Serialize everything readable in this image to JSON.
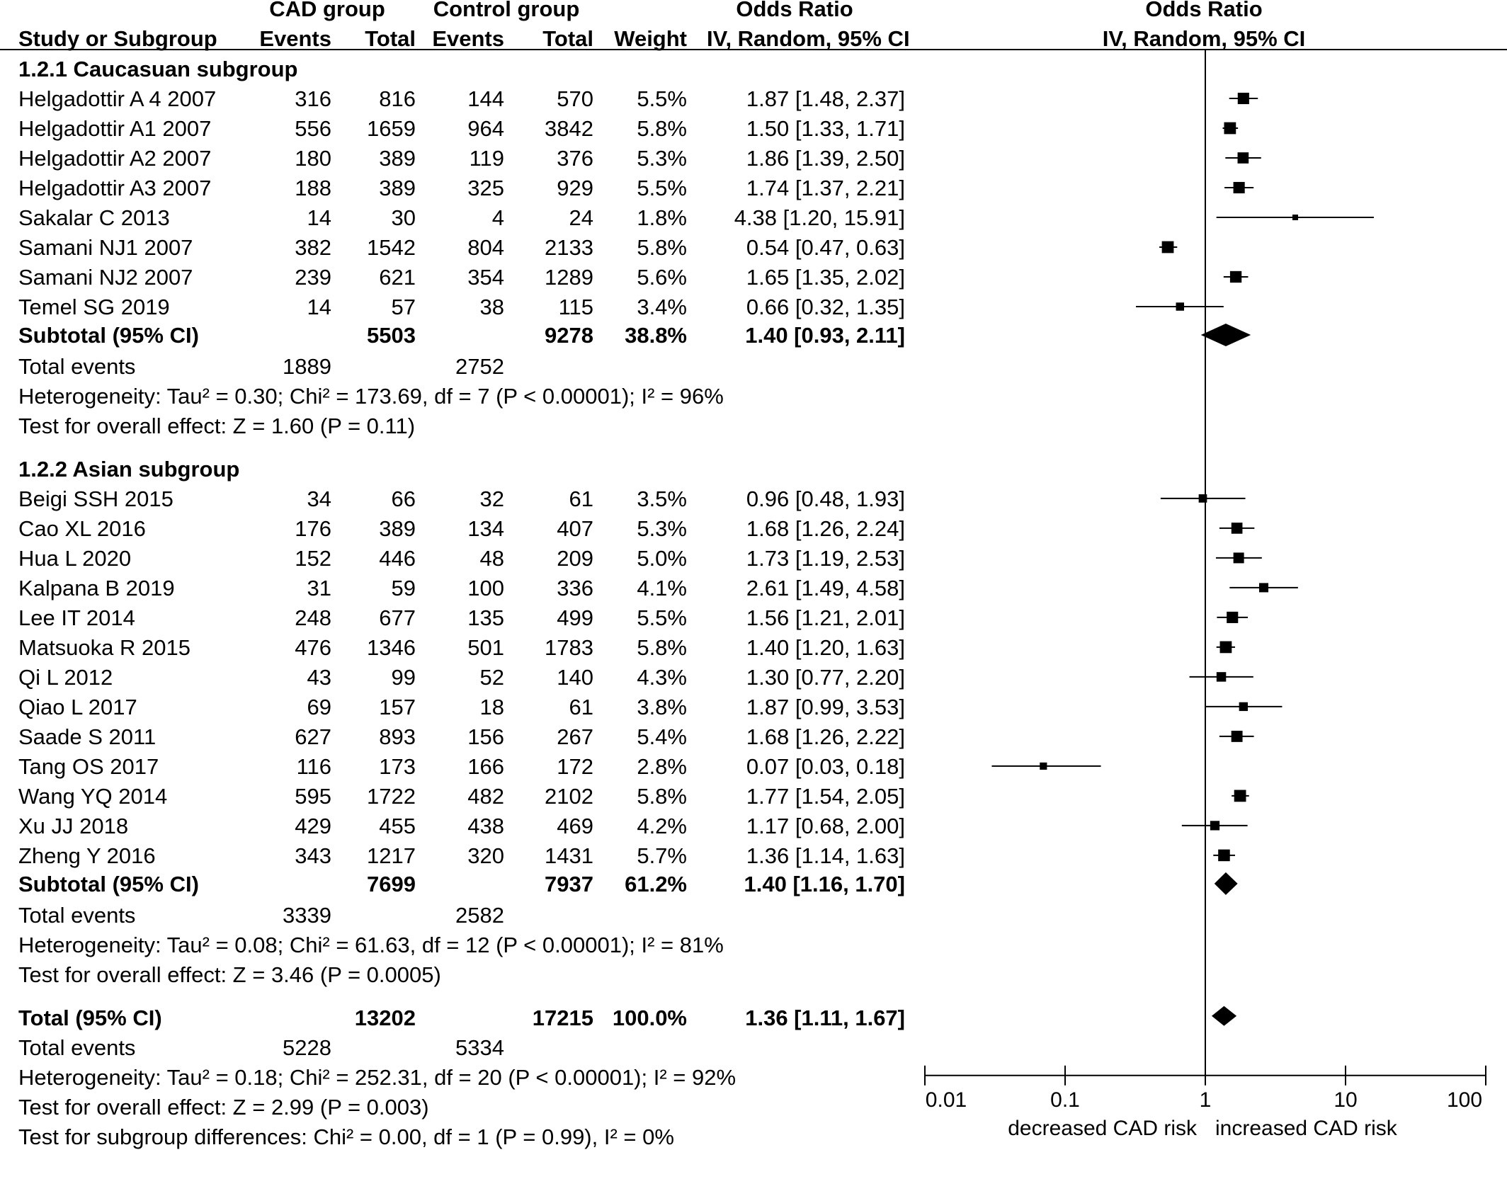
{
  "header": {
    "cad_group": "CAD group",
    "control_group": "Control group",
    "odds_ratio": "Odds Ratio",
    "odds_ratio_plot": "Odds Ratio",
    "study_or_subgroup": "Study or Subgroup",
    "events": "Events",
    "total": "Total",
    "events2": "Events",
    "total2": "Total",
    "weight": "Weight",
    "method": "IV, Random, 95% CI",
    "method_plot": "IV, Random, 95% CI"
  },
  "chart_data": {
    "type": "forest",
    "x_scale": "log",
    "xlim": [
      0.01,
      100
    ],
    "x_ticks": [
      "0.01",
      "0.1",
      "1",
      "10",
      "100"
    ],
    "null_line": 1,
    "xlabel_left": "decreased CAD risk",
    "xlabel_right": "increased CAD risk",
    "subgroups": [
      {
        "title": "1.2.1 Caucasuan subgroup",
        "studies": [
          {
            "name": "Helgadottir A 4 2007",
            "e1": "316",
            "n1": "816",
            "e2": "144",
            "n2": "570",
            "weight": "5.5%",
            "ci_text": "1.87 [1.48, 2.37]",
            "or": 1.87,
            "lo": 1.48,
            "hi": 2.37
          },
          {
            "name": "Helgadottir A1 2007",
            "e1": "556",
            "n1": "1659",
            "e2": "964",
            "n2": "3842",
            "weight": "5.8%",
            "ci_text": "1.50 [1.33, 1.71]",
            "or": 1.5,
            "lo": 1.33,
            "hi": 1.71
          },
          {
            "name": "Helgadottir A2 2007",
            "e1": "180",
            "n1": "389",
            "e2": "119",
            "n2": "376",
            "weight": "5.3%",
            "ci_text": "1.86 [1.39, 2.50]",
            "or": 1.86,
            "lo": 1.39,
            "hi": 2.5
          },
          {
            "name": "Helgadottir A3 2007",
            "e1": "188",
            "n1": "389",
            "e2": "325",
            "n2": "929",
            "weight": "5.5%",
            "ci_text": "1.74 [1.37, 2.21]",
            "or": 1.74,
            "lo": 1.37,
            "hi": 2.21
          },
          {
            "name": "Sakalar C 2013",
            "e1": "14",
            "n1": "30",
            "e2": "4",
            "n2": "24",
            "weight": "1.8%",
            "ci_text": "4.38 [1.20, 15.91]",
            "or": 4.38,
            "lo": 1.2,
            "hi": 15.91
          },
          {
            "name": "Samani NJ1 2007",
            "e1": "382",
            "n1": "1542",
            "e2": "804",
            "n2": "2133",
            "weight": "5.8%",
            "ci_text": "0.54 [0.47, 0.63]",
            "or": 0.54,
            "lo": 0.47,
            "hi": 0.63
          },
          {
            "name": "Samani NJ2 2007",
            "e1": "239",
            "n1": "621",
            "e2": "354",
            "n2": "1289",
            "weight": "5.6%",
            "ci_text": "1.65 [1.35, 2.02]",
            "or": 1.65,
            "lo": 1.35,
            "hi": 2.02
          },
          {
            "name": "Temel SG 2019",
            "e1": "14",
            "n1": "57",
            "e2": "38",
            "n2": "115",
            "weight": "3.4%",
            "ci_text": "0.66 [0.32, 1.35]",
            "or": 0.66,
            "lo": 0.32,
            "hi": 1.35
          }
        ],
        "subtotal": {
          "label": "Subtotal (95% CI)",
          "n1": "5503",
          "n2": "9278",
          "weight": "38.8%",
          "ci_text": "1.40 [0.93, 2.11]",
          "or": 1.4,
          "lo": 0.93,
          "hi": 2.11
        },
        "total_events": {
          "label": "Total events",
          "e1": "1889",
          "e2": "2752"
        },
        "heterogeneity": "Heterogeneity: Tau² = 0.30; Chi² = 173.69, df = 7 (P < 0.00001); I² = 96%",
        "overall": "Test for overall effect: Z = 1.60 (P = 0.11)"
      },
      {
        "title": "1.2.2 Asian subgroup",
        "studies": [
          {
            "name": "Beigi SSH 2015",
            "e1": "34",
            "n1": "66",
            "e2": "32",
            "n2": "61",
            "weight": "3.5%",
            "ci_text": "0.96 [0.48, 1.93]",
            "or": 0.96,
            "lo": 0.48,
            "hi": 1.93
          },
          {
            "name": "Cao XL 2016",
            "e1": "176",
            "n1": "389",
            "e2": "134",
            "n2": "407",
            "weight": "5.3%",
            "ci_text": "1.68 [1.26, 2.24]",
            "or": 1.68,
            "lo": 1.26,
            "hi": 2.24
          },
          {
            "name": "Hua L 2020",
            "e1": "152",
            "n1": "446",
            "e2": "48",
            "n2": "209",
            "weight": "5.0%",
            "ci_text": "1.73 [1.19, 2.53]",
            "or": 1.73,
            "lo": 1.19,
            "hi": 2.53
          },
          {
            "name": "Kalpana B 2019",
            "e1": "31",
            "n1": "59",
            "e2": "100",
            "n2": "336",
            "weight": "4.1%",
            "ci_text": "2.61 [1.49, 4.58]",
            "or": 2.61,
            "lo": 1.49,
            "hi": 4.58
          },
          {
            "name": "Lee IT 2014",
            "e1": "248",
            "n1": "677",
            "e2": "135",
            "n2": "499",
            "weight": "5.5%",
            "ci_text": "1.56 [1.21, 2.01]",
            "or": 1.56,
            "lo": 1.21,
            "hi": 2.01
          },
          {
            "name": "Matsuoka R 2015",
            "e1": "476",
            "n1": "1346",
            "e2": "501",
            "n2": "1783",
            "weight": "5.8%",
            "ci_text": "1.40 [1.20, 1.63]",
            "or": 1.4,
            "lo": 1.2,
            "hi": 1.63
          },
          {
            "name": "Qi L 2012",
            "e1": "43",
            "n1": "99",
            "e2": "52",
            "n2": "140",
            "weight": "4.3%",
            "ci_text": "1.30 [0.77, 2.20]",
            "or": 1.3,
            "lo": 0.77,
            "hi": 2.2
          },
          {
            "name": "Qiao L 2017",
            "e1": "69",
            "n1": "157",
            "e2": "18",
            "n2": "61",
            "weight": "3.8%",
            "ci_text": "1.87 [0.99, 3.53]",
            "or": 1.87,
            "lo": 0.99,
            "hi": 3.53
          },
          {
            "name": "Saade S 2011",
            "e1": "627",
            "n1": "893",
            "e2": "156",
            "n2": "267",
            "weight": "5.4%",
            "ci_text": "1.68 [1.26, 2.22]",
            "or": 1.68,
            "lo": 1.26,
            "hi": 2.22
          },
          {
            "name": "Tang OS 2017",
            "e1": "116",
            "n1": "173",
            "e2": "166",
            "n2": "172",
            "weight": "2.8%",
            "ci_text": "0.07 [0.03, 0.18]",
            "or": 0.07,
            "lo": 0.03,
            "hi": 0.18
          },
          {
            "name": "Wang YQ 2014",
            "e1": "595",
            "n1": "1722",
            "e2": "482",
            "n2": "2102",
            "weight": "5.8%",
            "ci_text": "1.77 [1.54, 2.05]",
            "or": 1.77,
            "lo": 1.54,
            "hi": 2.05
          },
          {
            "name": "Xu JJ 2018",
            "e1": "429",
            "n1": "455",
            "e2": "438",
            "n2": "469",
            "weight": "4.2%",
            "ci_text": "1.17 [0.68, 2.00]",
            "or": 1.17,
            "lo": 0.68,
            "hi": 2.0
          },
          {
            "name": "Zheng Y 2016",
            "e1": "343",
            "n1": "1217",
            "e2": "320",
            "n2": "1431",
            "weight": "5.7%",
            "ci_text": "1.36 [1.14, 1.63]",
            "or": 1.36,
            "lo": 1.14,
            "hi": 1.63
          }
        ],
        "subtotal": {
          "label": "Subtotal (95% CI)",
          "n1": "7699",
          "n2": "7937",
          "weight": "61.2%",
          "ci_text": "1.40 [1.16, 1.70]",
          "or": 1.4,
          "lo": 1.16,
          "hi": 1.7
        },
        "total_events": {
          "label": "Total events",
          "e1": "3339",
          "e2": "2582"
        },
        "heterogeneity": "Heterogeneity: Tau² = 0.08; Chi² = 61.63, df = 12 (P < 0.00001); I² = 81%",
        "overall": "Test for overall effect: Z = 3.46 (P = 0.0005)"
      }
    ],
    "total": {
      "label": "Total (95% CI)",
      "n1": "13202",
      "n2": "17215",
      "weight": "100.0%",
      "ci_text": "1.36 [1.11, 1.67]",
      "or": 1.36,
      "lo": 1.11,
      "hi": 1.67
    },
    "total_events": {
      "label": "Total events",
      "e1": "5228",
      "e2": "5334"
    },
    "heterogeneity": "Heterogeneity: Tau² = 0.18; Chi² = 252.31, df = 20 (P < 0.00001); I² = 92%",
    "overall": "Test for overall effect: Z = 2.99 (P = 0.003)",
    "subgroup_diff": "Test for subgroup differences: Chi² = 0.00, df = 1 (P = 0.99), I² = 0%"
  }
}
